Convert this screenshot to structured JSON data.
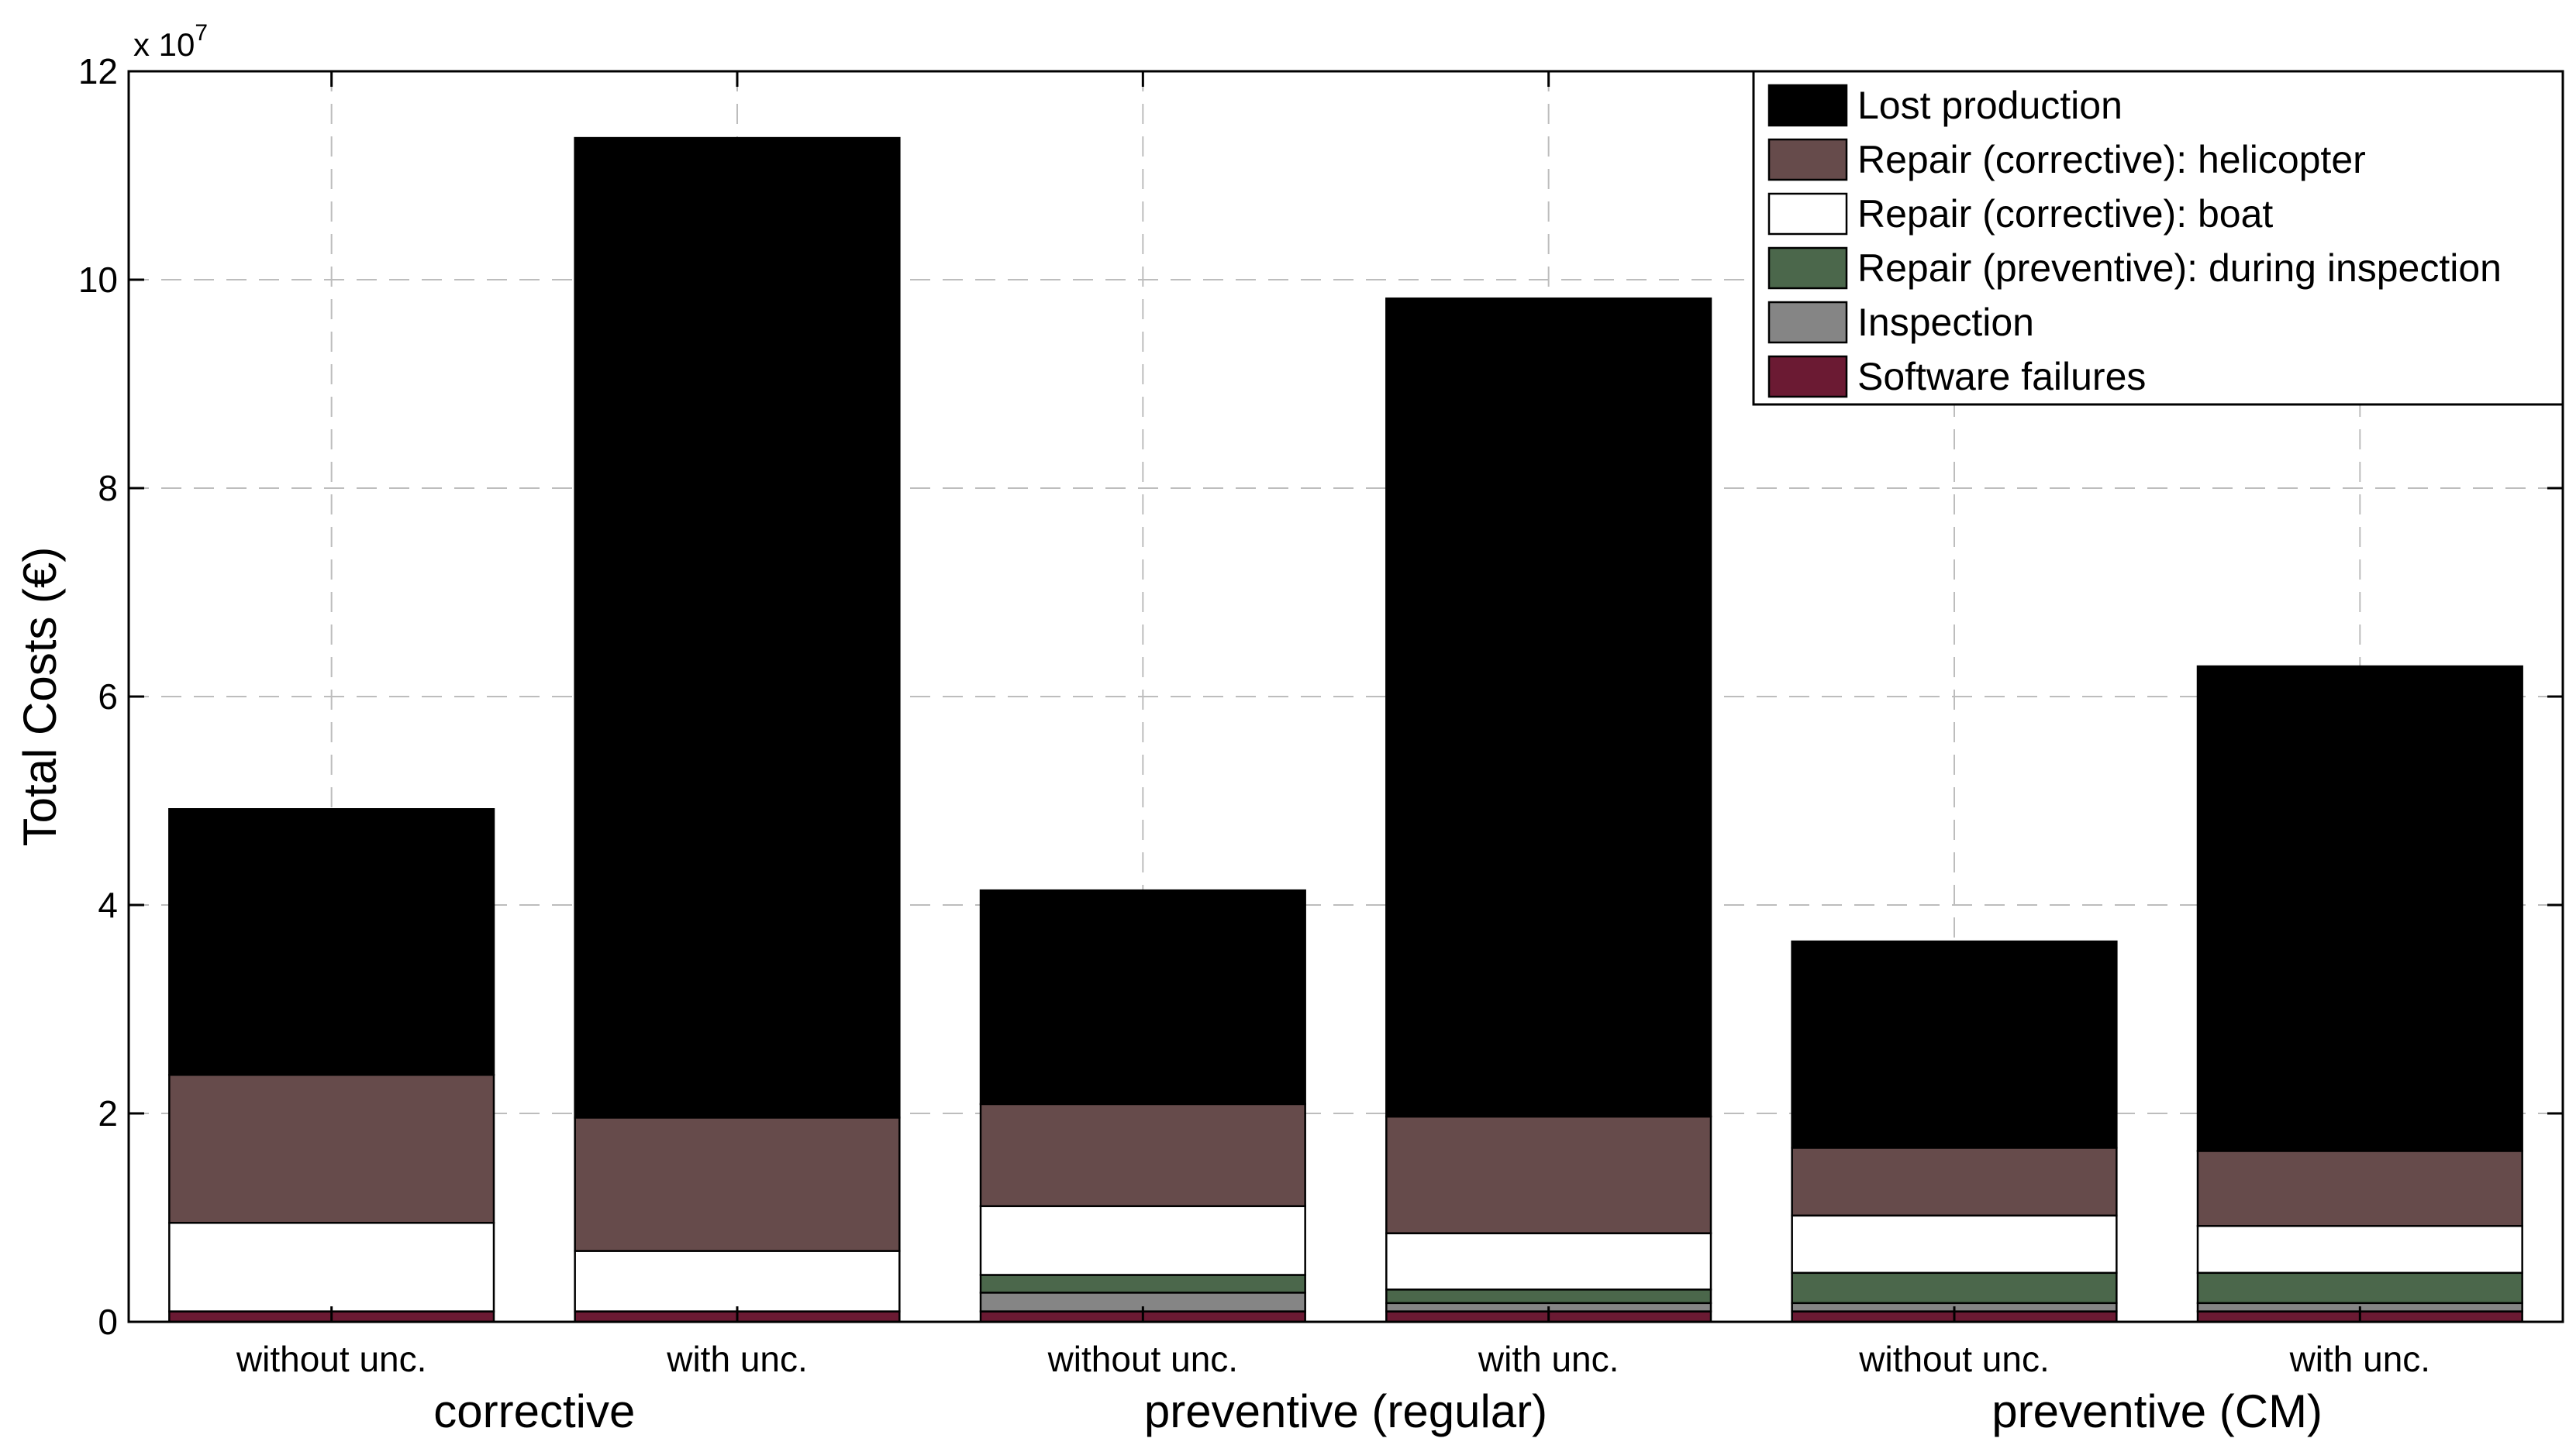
{
  "chart_data": {
    "type": "bar",
    "stacked": true,
    "categories": [
      "without unc.",
      "with unc.",
      "without unc.",
      "with unc.",
      "without unc.",
      "with unc."
    ],
    "groups": [
      {
        "label": "corrective",
        "categories": [
          0,
          1
        ]
      },
      {
        "label": "preventive (regular)",
        "categories": [
          2,
          3
        ]
      },
      {
        "label": "preventive (CM)",
        "categories": [
          4,
          5
        ]
      }
    ],
    "series": [
      {
        "name": "Software failures",
        "color": "#6b1a33",
        "values": [
          0.1,
          0.1,
          0.1,
          0.1,
          0.1,
          0.1
        ]
      },
      {
        "name": "Inspection",
        "color": "#858585",
        "values": [
          0.0,
          0.0,
          0.18,
          0.08,
          0.08,
          0.08
        ]
      },
      {
        "name": "Repair (preventive): during inspection",
        "color": "#4b674b",
        "values": [
          0.0,
          0.0,
          0.17,
          0.13,
          0.29,
          0.29
        ]
      },
      {
        "name": "Repair (corrective): boat",
        "color": "#ffffff",
        "values": [
          0.85,
          0.58,
          0.66,
          0.54,
          0.55,
          0.45
        ]
      },
      {
        "name": "Repair (corrective): helicopter",
        "color": "#664b4b",
        "values": [
          1.42,
          1.28,
          0.98,
          1.12,
          0.65,
          0.72
        ]
      },
      {
        "name": "Lost production",
        "color": "#000000",
        "values": [
          2.55,
          9.4,
          2.05,
          7.85,
          1.98,
          4.65
        ]
      }
    ],
    "legend_order": [
      "Lost production",
      "Repair (corrective): helicopter",
      "Repair (corrective): boat",
      "Repair (preventive): during inspection",
      "Inspection",
      "Software failures"
    ],
    "ylabel": "Total Costs (€)",
    "y_multiplier": "x 10",
    "y_multiplier_exponent": "7",
    "ylim": [
      0,
      12
    ],
    "yticks": [
      0,
      2,
      4,
      6,
      8,
      10,
      12
    ],
    "grid": true,
    "legend_position": "top-right"
  }
}
